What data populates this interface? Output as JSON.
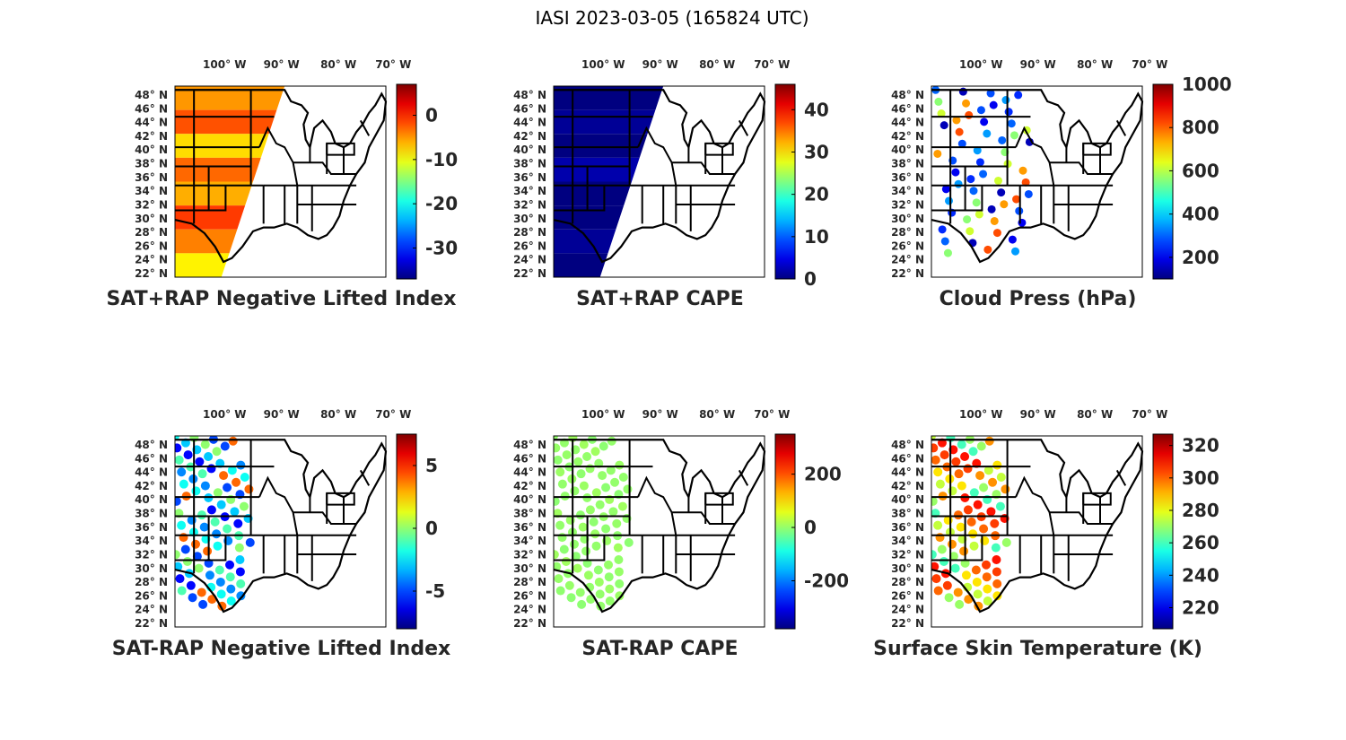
{
  "figure_title": "IASI 2023-03-05 (165824 UTC)",
  "lon_ticks": [
    "100",
    "90",
    "80",
    "70"
  ],
  "lon_suffix": "W",
  "lat_ticks": [
    "48",
    "46",
    "44",
    "42",
    "40",
    "38",
    "36",
    "34",
    "32",
    "30",
    "28",
    "26",
    "24",
    "22"
  ],
  "lat_suffix": "N",
  "degree_symbol": "°",
  "panels": [
    {
      "title": "SAT+RAP Negative Lifted Index",
      "colorbar": {
        "range": [
          -37,
          7
        ],
        "ticks": [
          "0",
          "-10",
          "-20",
          "-30"
        ],
        "tick_values": [
          0,
          -10,
          -20,
          -30
        ]
      },
      "swath": {
        "type": "full",
        "levels": [
          -5,
          -2,
          -8,
          -3,
          -6,
          -1,
          -4,
          -9
        ]
      }
    },
    {
      "title": "SAT+RAP CAPE",
      "colorbar": {
        "range": [
          0,
          46
        ],
        "ticks": [
          "40",
          "30",
          "20",
          "10",
          "0"
        ],
        "tick_values": [
          40,
          30,
          20,
          10,
          0
        ]
      },
      "swath": {
        "type": "full",
        "levels": [
          0,
          1,
          0,
          2,
          0,
          0,
          1,
          0
        ]
      }
    },
    {
      "title": "Cloud Press (hPa)",
      "colorbar": {
        "range": [
          100,
          1000
        ],
        "ticks": [
          "1000",
          "800",
          "600",
          "400",
          "200"
        ],
        "tick_values": [
          1000,
          800,
          600,
          400,
          200
        ]
      },
      "swath": {
        "type": "scatter",
        "levels": [
          300,
          250,
          350,
          200,
          280,
          820,
          750,
          150,
          620,
          560
        ]
      }
    },
    {
      "title": "SAT-RAP Negative Lifted Index",
      "colorbar": {
        "range": [
          -8,
          7.5
        ],
        "ticks": [
          "5",
          "0",
          "-5"
        ],
        "tick_values": [
          5,
          0,
          -5
        ]
      },
      "swath": {
        "type": "partial",
        "levels": [
          -2,
          -4,
          -1,
          -6,
          -3,
          0,
          -5,
          4
        ]
      }
    },
    {
      "title": "SAT-RAP CAPE",
      "colorbar": {
        "range": [
          -380,
          350
        ],
        "ticks": [
          "200",
          "0",
          "-200"
        ],
        "tick_values": [
          200,
          0,
          -200
        ]
      },
      "swath": {
        "type": "partial",
        "levels": [
          0,
          5,
          -3,
          2,
          0,
          8,
          -5,
          0
        ]
      }
    },
    {
      "title": "Surface Skin Temperature (K)",
      "colorbar": {
        "range": [
          207,
          327
        ],
        "ticks": [
          "320",
          "300",
          "280",
          "260",
          "240",
          "220"
        ],
        "tick_values": [
          320,
          300,
          280,
          260,
          240,
          220
        ]
      },
      "swath": {
        "type": "partial",
        "levels": [
          275,
          285,
          300,
          305,
          310,
          260,
          270,
          295
        ]
      }
    }
  ]
}
